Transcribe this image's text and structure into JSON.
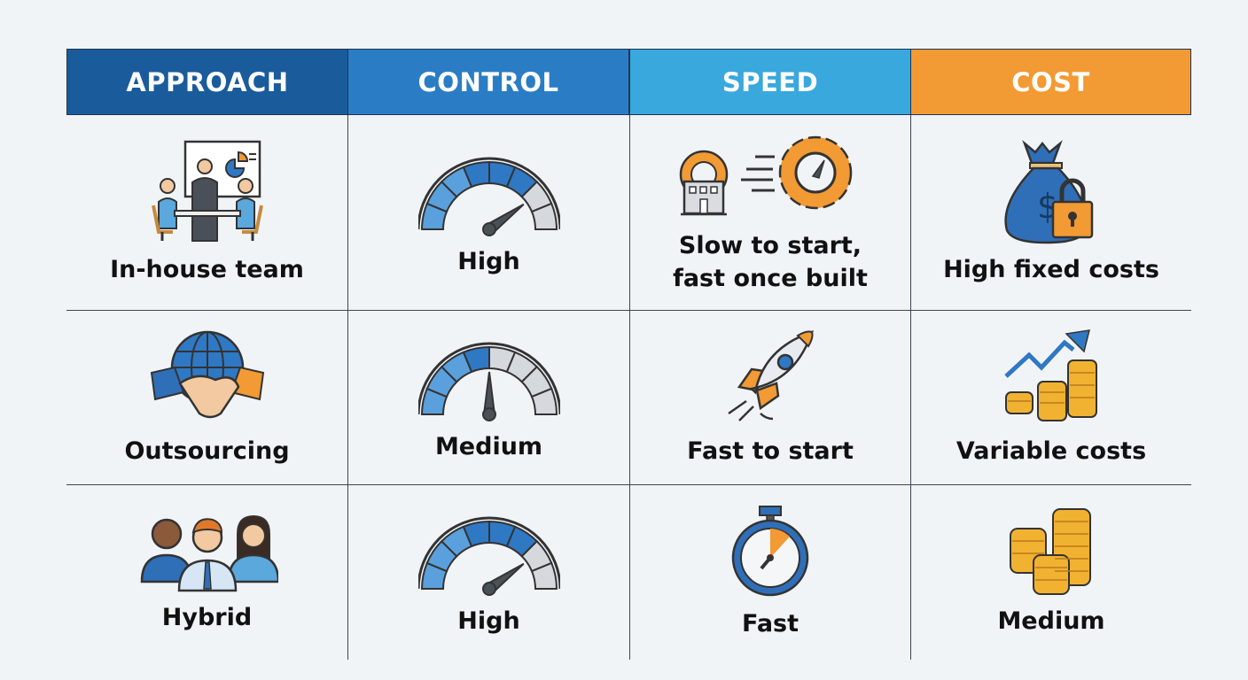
{
  "colors": {
    "approach": "#1a5b9c",
    "control": "#2a7dc5",
    "speed": "#39a8dd",
    "cost": "#f29a33",
    "background": "#f1f4f7",
    "gauge_blue": "#2f78c4",
    "gauge_gray": "#d5d9de",
    "orange": "#f29a33"
  },
  "headers": [
    "APPROACH",
    "CONTROL",
    "SPEED",
    "COST"
  ],
  "rows": [
    {
      "approach": {
        "label": "In-house team",
        "icon": "team-meeting-icon"
      },
      "control": {
        "label": "High",
        "icon": "gauge-icon",
        "gauge_level": 0.8
      },
      "speed": {
        "label_line1": "Slow to start,",
        "label_line2": "fast once built",
        "icon": "building-gear-speed-icon"
      },
      "cost": {
        "label": "High fixed costs",
        "icon": "money-bag-lock-icon"
      }
    },
    {
      "approach": {
        "label": "Outsourcing",
        "icon": "globe-handshake-icon"
      },
      "control": {
        "label": "Medium",
        "icon": "gauge-icon",
        "gauge_level": 0.5
      },
      "speed": {
        "label": "Fast to start",
        "icon": "rocket-icon"
      },
      "cost": {
        "label": "Variable costs",
        "icon": "coins-trend-up-icon"
      }
    },
    {
      "approach": {
        "label": "Hybrid",
        "icon": "people-group-icon"
      },
      "control": {
        "label": "High",
        "icon": "gauge-icon",
        "gauge_level": 0.8
      },
      "speed": {
        "label": "Fast",
        "icon": "stopwatch-icon"
      },
      "cost": {
        "label": "Medium",
        "icon": "coin-stacks-icon"
      }
    }
  ]
}
